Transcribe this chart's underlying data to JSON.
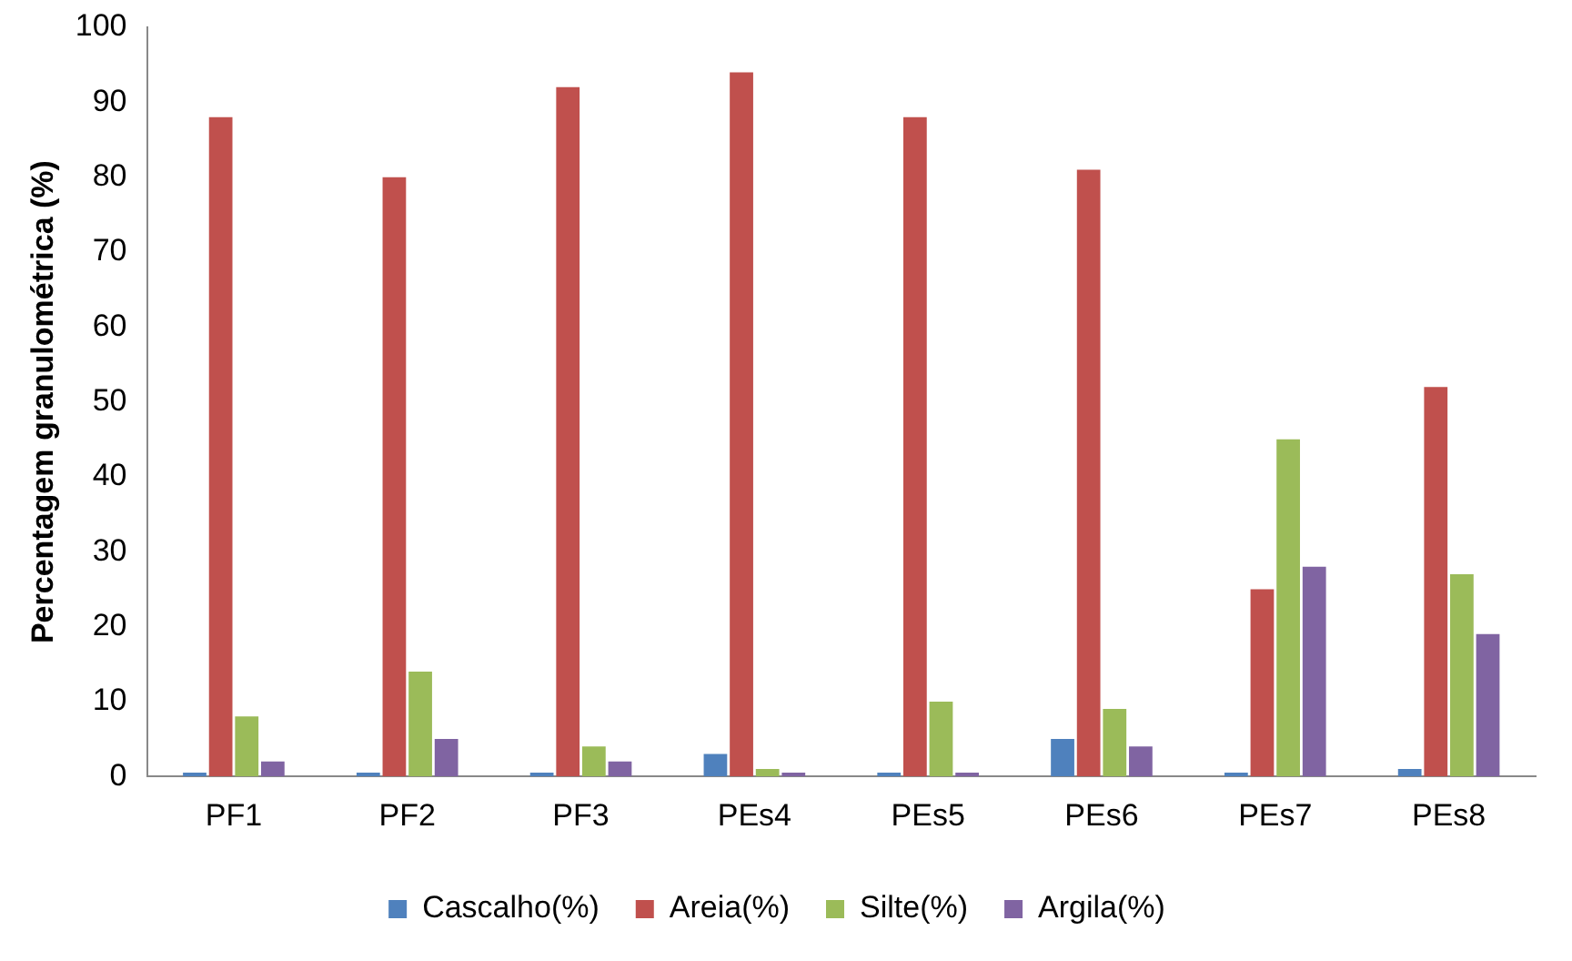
{
  "chart_data": {
    "type": "bar",
    "ylabel": "Percentagem granulométrica (%)",
    "categories": [
      "PF1",
      "PF2",
      "PF3",
      "PEs4",
      "PEs5",
      "PEs6",
      "PEs7",
      "PEs8"
    ],
    "series": [
      {
        "name": "Cascalho(%)",
        "color": "#4f81bd",
        "values": [
          0.5,
          0.5,
          0.5,
          3,
          0.5,
          5,
          0.5,
          1
        ]
      },
      {
        "name": "Areia(%)",
        "color": "#c0504d",
        "values": [
          88,
          80,
          92,
          94,
          88,
          81,
          25,
          52
        ]
      },
      {
        "name": "Silte(%)",
        "color": "#9bbb59",
        "values": [
          8,
          14,
          4,
          1,
          10,
          9,
          45,
          27
        ]
      },
      {
        "name": "Argila(%)",
        "color": "#8064a2",
        "values": [
          2,
          5,
          2,
          0.5,
          0.5,
          4,
          28,
          19
        ]
      }
    ],
    "ylim": [
      0,
      100
    ],
    "yticks": [
      0,
      10,
      20,
      30,
      40,
      50,
      60,
      70,
      80,
      90,
      100
    ],
    "grid": false,
    "legend": "bottom"
  }
}
